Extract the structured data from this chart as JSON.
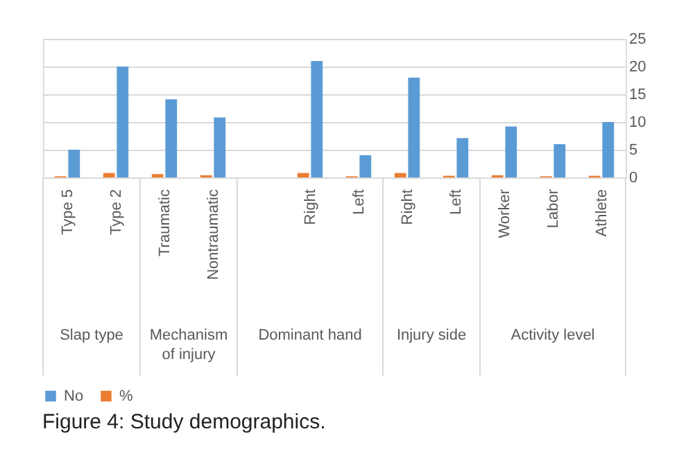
{
  "chart_data": {
    "type": "bar",
    "title": "Figure 4: Study demographics.",
    "categories": [
      "Type 5",
      "Type 2",
      "Traumatic",
      "Nontraumatic",
      null,
      "Right",
      "Left",
      "Right",
      "Left",
      "Worker",
      "Labor",
      "Athlete"
    ],
    "series": [
      {
        "name": "No",
        "color": "#5b9bd5",
        "values": [
          5,
          20,
          14.1,
          10.8,
          null,
          21,
          4,
          18,
          7.1,
          9.2,
          6,
          10
        ]
      },
      {
        "name": "%",
        "color": "#ed7d31",
        "values": [
          0.2,
          0.8,
          0.6,
          0.4,
          null,
          0.8,
          0.2,
          0.8,
          0.3,
          0.4,
          0.2,
          0.3
        ]
      }
    ],
    "annotations": [
      "Slap type",
      "Mechanism of injury",
      "Dominant hand",
      "Injury side",
      "Activity level"
    ],
    "ylim": [
      0,
      25
    ],
    "yticks": [
      0,
      5,
      10,
      15,
      20,
      25
    ],
    "grid": "y",
    "legend": "bottom"
  }
}
